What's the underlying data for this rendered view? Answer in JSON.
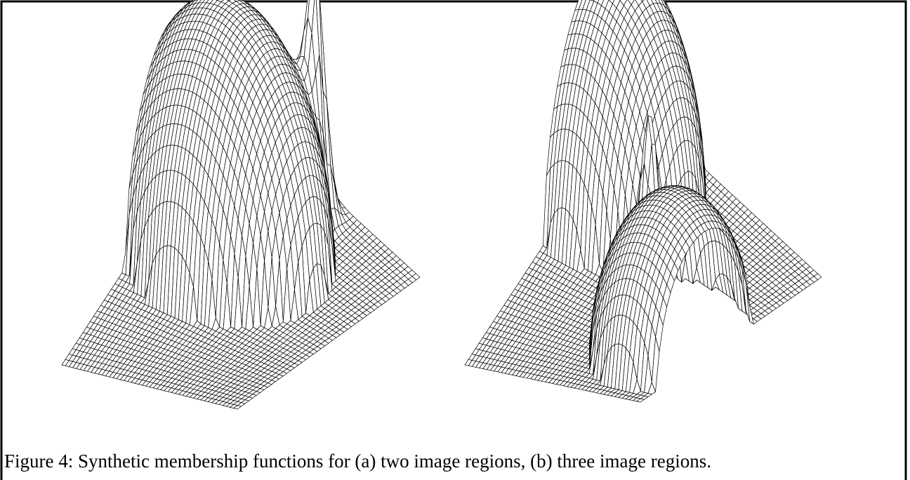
{
  "caption": "Figure 4: Synthetic membership functions for (a) two image regions, (b) three image regions."
}
